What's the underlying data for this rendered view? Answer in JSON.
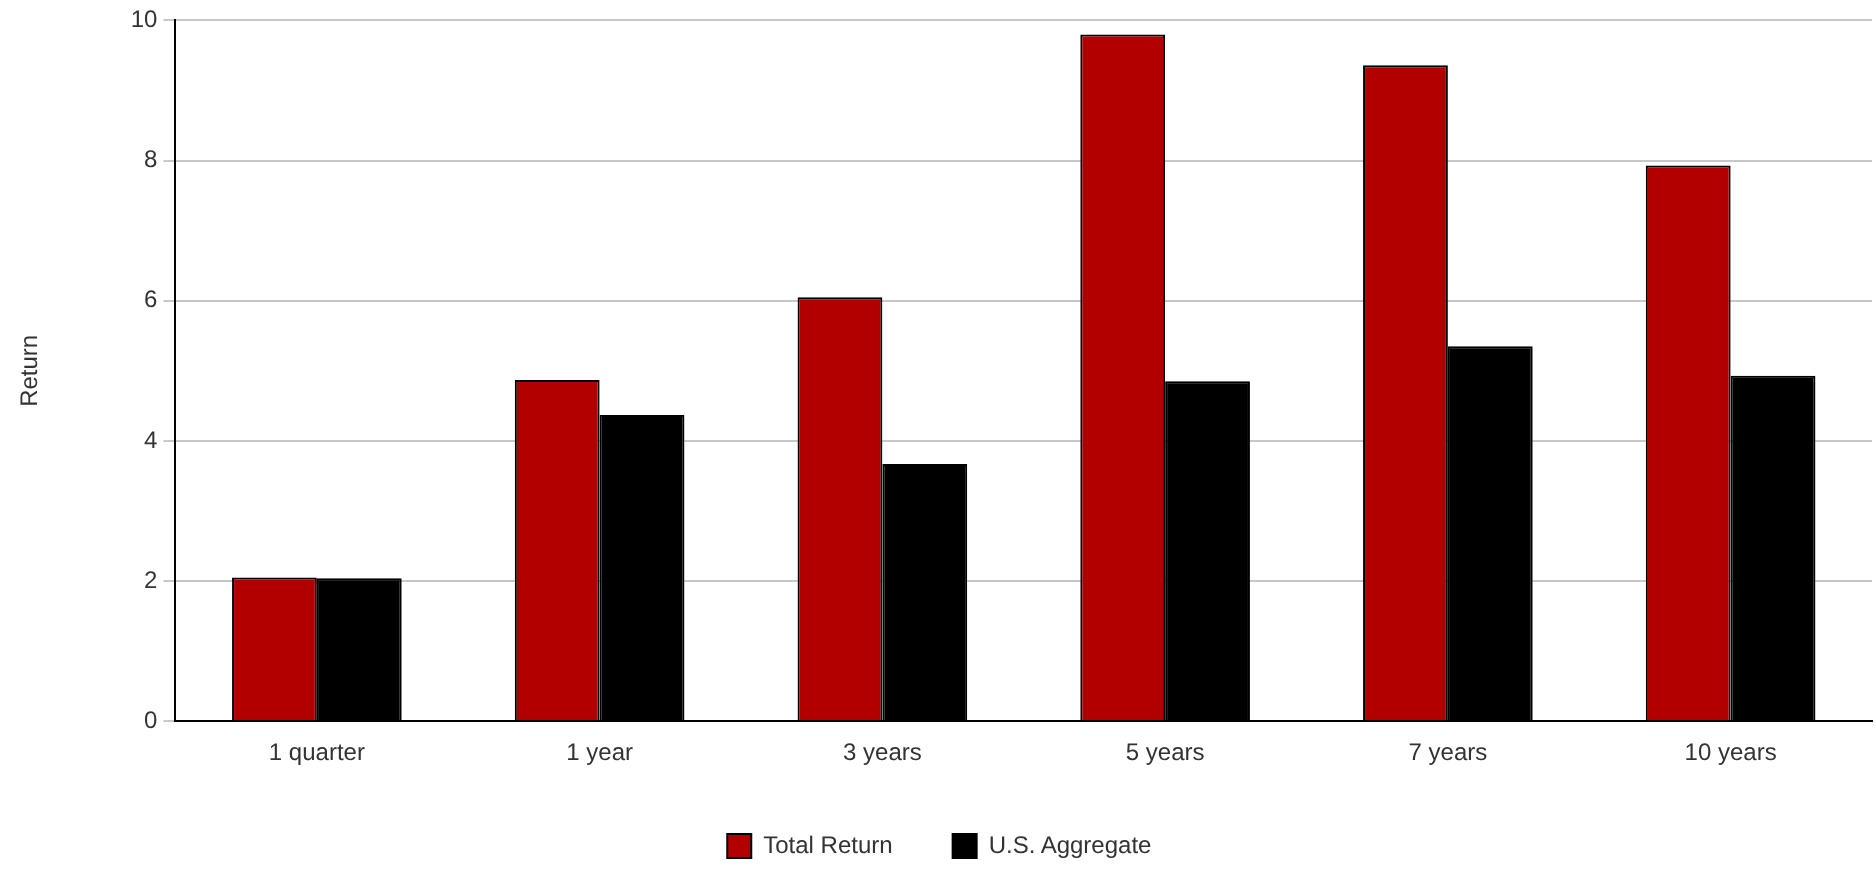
{
  "chart_data": {
    "type": "bar",
    "ylabel": "Return",
    "categories": [
      "1 quarter",
      "1 year",
      "3 years",
      "5 years",
      "7 years",
      "10 years"
    ],
    "series": [
      {
        "name": "Total Return",
        "color": "#b20000",
        "values": [
          2.05,
          4.87,
          6.05,
          9.8,
          9.36,
          7.93
        ]
      },
      {
        "name": "U.S. Aggregate",
        "color": "#000000",
        "values": [
          2.04,
          4.37,
          3.67,
          4.85,
          5.35,
          4.93
        ]
      }
    ],
    "ylim": [
      0,
      10
    ],
    "yticks": [
      0,
      2,
      4,
      6,
      8,
      10
    ],
    "grid": "y",
    "legend": "bottom"
  }
}
